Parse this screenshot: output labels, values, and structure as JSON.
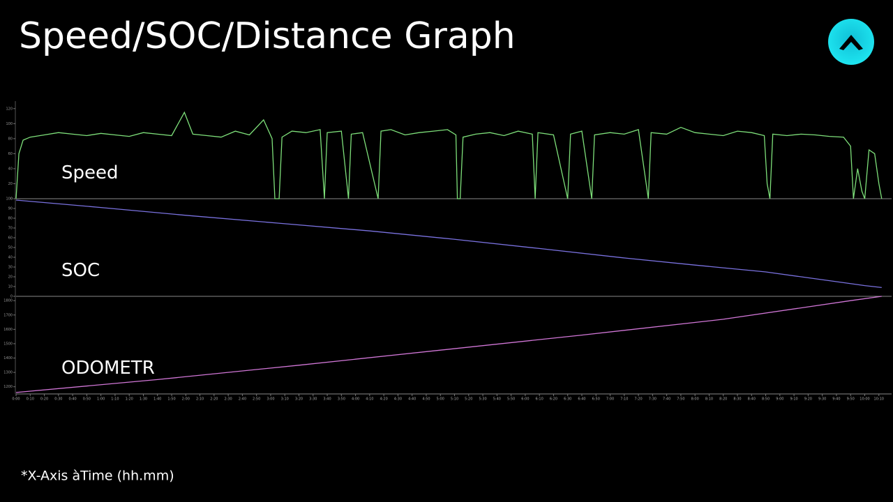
{
  "title": "Speed/SOC/Distance Graph",
  "footnote": "*X-Axis àTime (hh.mm)",
  "chart_data": [
    {
      "type": "line",
      "title": "Speed",
      "x": [
        0,
        2,
        5,
        10,
        20,
        30,
        40,
        50,
        60,
        70,
        80,
        90,
        100,
        110,
        119,
        125,
        135,
        145,
        155,
        165,
        175,
        181,
        183,
        186,
        188,
        195,
        205,
        215,
        218,
        220,
        230,
        235,
        237,
        245,
        256,
        258,
        265,
        275,
        285,
        295,
        305,
        311,
        312,
        314,
        316,
        325,
        335,
        345,
        355,
        365,
        367,
        369,
        380,
        390,
        392,
        400,
        407,
        409,
        420,
        430,
        440,
        447,
        449,
        460,
        470,
        480,
        490,
        500,
        510,
        520,
        529,
        531,
        533,
        535,
        545,
        555,
        565,
        575,
        585,
        590,
        592,
        595,
        598,
        600,
        603,
        607,
        610,
        612
      ],
      "series": [
        {
          "color": "#7ee07a",
          "values": [
            0,
            60,
            78,
            82,
            85,
            88,
            86,
            84,
            87,
            85,
            83,
            88,
            86,
            84,
            115,
            86,
            84,
            82,
            90,
            85,
            105,
            80,
            0,
            0,
            82,
            90,
            88,
            92,
            0,
            88,
            90,
            0,
            86,
            88,
            0,
            90,
            92,
            85,
            88,
            90,
            92,
            85,
            0,
            0,
            82,
            86,
            88,
            84,
            90,
            86,
            0,
            88,
            85,
            0,
            86,
            90,
            0,
            85,
            88,
            86,
            92,
            0,
            88,
            86,
            95,
            88,
            86,
            84,
            90,
            88,
            84,
            20,
            0,
            86,
            84,
            86,
            85,
            83,
            82,
            70,
            0,
            40,
            10,
            0,
            65,
            60,
            20,
            0
          ]
        }
      ],
      "xlim": [
        0,
        619
      ],
      "ylim": [
        0,
        130
      ],
      "yticks": [
        0,
        20,
        40,
        60,
        80,
        100,
        120
      ]
    },
    {
      "type": "line",
      "title": "SOC",
      "x": [
        0,
        60,
        120,
        185,
        250,
        309,
        370,
        432,
        480,
        530,
        585,
        600,
        612
      ],
      "series": [
        {
          "color": "#7a72e0",
          "values": [
            98.6,
            91,
            83,
            75,
            67,
            58.6,
            49,
            39,
            32,
            25,
            14,
            11,
            9
          ]
        }
      ],
      "xlim": [
        0,
        619
      ],
      "ylim": [
        0,
        100
      ],
      "yticks": [
        0,
        10,
        20,
        30,
        40,
        50,
        60,
        70,
        80,
        90,
        100
      ]
    },
    {
      "type": "line",
      "title": "ODOMETR",
      "x": [
        0,
        100,
        200,
        300,
        400,
        500,
        590,
        612
      ],
      "series": [
        {
          "color": "#d277d8",
          "values": [
            1160,
            1250,
            1350,
            1455,
            1560,
            1670,
            1800,
            1830
          ]
        }
      ],
      "xlim": [
        0,
        619
      ],
      "ylim": [
        1150,
        1830
      ],
      "yticks": [
        1200,
        1300,
        1400,
        1500,
        1600,
        1700,
        1800
      ],
      "xticks": [
        {
          "value": 0,
          "label": "0:00"
        },
        {
          "value": 10,
          "label": "0:10"
        },
        {
          "value": 20,
          "label": "0:20"
        },
        {
          "value": 30,
          "label": "0:30"
        },
        {
          "value": 40,
          "label": "0:40"
        },
        {
          "value": 50,
          "label": "0:50"
        },
        {
          "value": 60,
          "label": "1:00"
        },
        {
          "value": 70,
          "label": "1:10"
        },
        {
          "value": 80,
          "label": "1:20"
        },
        {
          "value": 90,
          "label": "1:30"
        },
        {
          "value": 100,
          "label": "1:40"
        },
        {
          "value": 110,
          "label": "1:50"
        },
        {
          "value": 120,
          "label": "2:00"
        },
        {
          "value": 130,
          "label": "2:10"
        },
        {
          "value": 140,
          "label": "2:20"
        },
        {
          "value": 150,
          "label": "2:30"
        },
        {
          "value": 160,
          "label": "2:40"
        },
        {
          "value": 170,
          "label": "2:50"
        },
        {
          "value": 180,
          "label": "3:00"
        },
        {
          "value": 190,
          "label": "3:10"
        },
        {
          "value": 200,
          "label": "3:20"
        },
        {
          "value": 210,
          "label": "3:30"
        },
        {
          "value": 220,
          "label": "3:40"
        },
        {
          "value": 230,
          "label": "3:50"
        },
        {
          "value": 240,
          "label": "4:00"
        },
        {
          "value": 250,
          "label": "4:10"
        },
        {
          "value": 260,
          "label": "4:20"
        },
        {
          "value": 270,
          "label": "4:30"
        },
        {
          "value": 280,
          "label": "4:40"
        },
        {
          "value": 290,
          "label": "4:50"
        },
        {
          "value": 300,
          "label": "5:00"
        },
        {
          "value": 310,
          "label": "5:10"
        },
        {
          "value": 320,
          "label": "5:20"
        },
        {
          "value": 330,
          "label": "5:30"
        },
        {
          "value": 340,
          "label": "5:40"
        },
        {
          "value": 350,
          "label": "5:50"
        },
        {
          "value": 360,
          "label": "6:00"
        },
        {
          "value": 370,
          "label": "6:10"
        },
        {
          "value": 380,
          "label": "6:20"
        },
        {
          "value": 390,
          "label": "6:30"
        },
        {
          "value": 400,
          "label": "6:40"
        },
        {
          "value": 410,
          "label": "6:50"
        },
        {
          "value": 420,
          "label": "7:00"
        },
        {
          "value": 430,
          "label": "7:10"
        },
        {
          "value": 440,
          "label": "7:20"
        },
        {
          "value": 450,
          "label": "7:30"
        },
        {
          "value": 460,
          "label": "7:40"
        },
        {
          "value": 470,
          "label": "7:50"
        },
        {
          "value": 480,
          "label": "8:00"
        },
        {
          "value": 490,
          "label": "8:10"
        },
        {
          "value": 500,
          "label": "8:20"
        },
        {
          "value": 510,
          "label": "8:30"
        },
        {
          "value": 520,
          "label": "8:40"
        },
        {
          "value": 530,
          "label": "8:50"
        },
        {
          "value": 540,
          "label": "9:00"
        },
        {
          "value": 550,
          "label": "9:10"
        },
        {
          "value": 560,
          "label": "9:20"
        },
        {
          "value": 570,
          "label": "9:30"
        },
        {
          "value": 580,
          "label": "9:40"
        },
        {
          "value": 590,
          "label": "9:50"
        },
        {
          "value": 600,
          "label": "10:00"
        },
        {
          "value": 610,
          "label": "10:10"
        }
      ]
    }
  ]
}
